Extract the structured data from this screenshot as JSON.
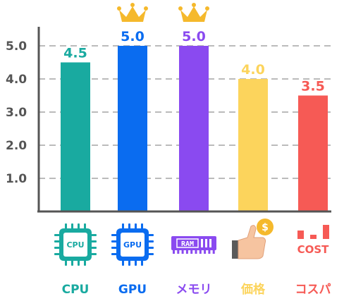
{
  "chart_data": {
    "type": "bar",
    "categories": [
      "CPU",
      "GPU",
      "メモリ",
      "価格",
      "コスパ"
    ],
    "values": [
      4.5,
      5.0,
      5.0,
      4.0,
      3.5
    ],
    "value_labels": [
      "4.5",
      "5.0",
      "5.0",
      "4.0",
      "3.5"
    ],
    "colors": [
      "#19aaa0",
      "#0a6cf0",
      "#8a4af0",
      "#fcd45c",
      "#f65a55"
    ],
    "icons": [
      "cpu-chip-icon",
      "gpu-chip-icon",
      "ram-module-icon",
      "thumbs-up-coin-icon",
      "cost-bars-icon"
    ],
    "icon_texts": [
      "CPU",
      "GPU",
      "RAM",
      "$",
      "COST"
    ],
    "crowned": [
      false,
      true,
      true,
      false,
      false
    ],
    "yticks": [
      1.0,
      2.0,
      3.0,
      4.0,
      5.0
    ],
    "ytick_labels": [
      "1.0",
      "2.0",
      "3.0",
      "4.0",
      "5.0"
    ],
    "ylim": [
      0,
      5.5
    ],
    "grid": true,
    "title": "",
    "xlabel": "",
    "ylabel": ""
  },
  "colors": {
    "axis": "#555555",
    "grid": "#bbbbbb",
    "crown": "#f5b92c"
  }
}
